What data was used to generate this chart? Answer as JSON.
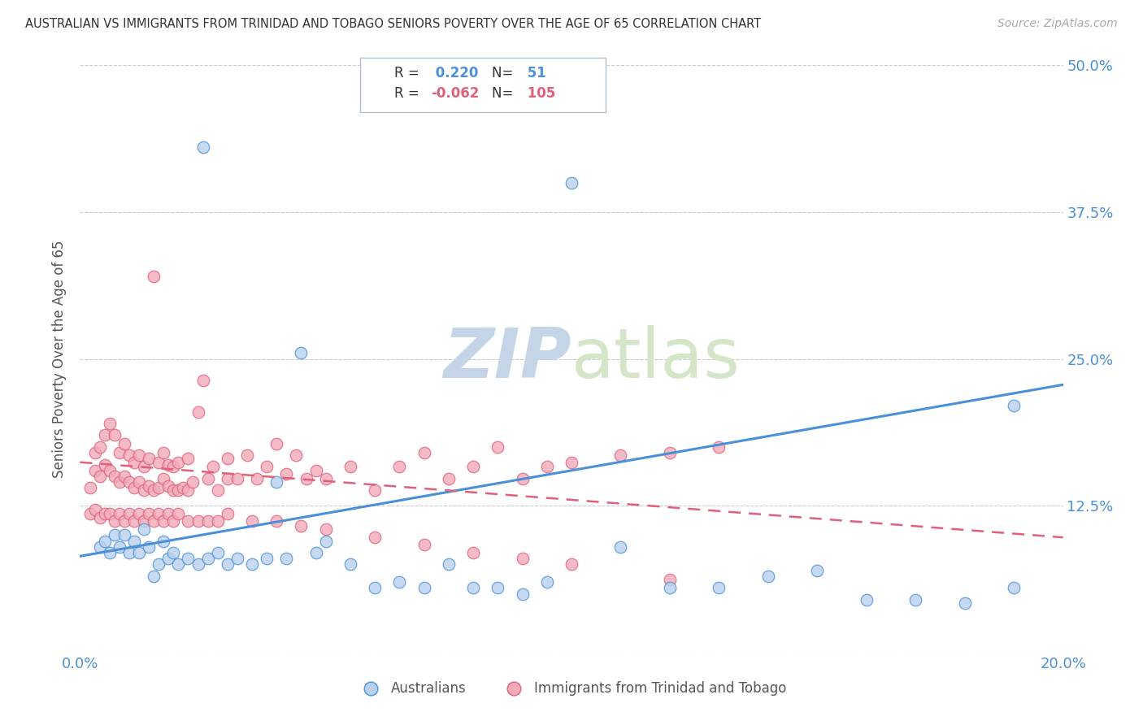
{
  "title": "AUSTRALIAN VS IMMIGRANTS FROM TRINIDAD AND TOBAGO SENIORS POVERTY OVER THE AGE OF 65 CORRELATION CHART",
  "source": "Source: ZipAtlas.com",
  "ylabel": "Seniors Poverty Over the Age of 65",
  "R_blue": 0.22,
  "N_blue": 51,
  "R_pink": -0.062,
  "N_pink": 105,
  "blue_color": "#4a90d9",
  "pink_color": "#e0607a",
  "scatter_blue_face": "#b8d0ee",
  "scatter_pink_face": "#f2aab8",
  "watermark_zip": "ZIP",
  "watermark_atlas": "atlas",
  "watermark_color": "#d0dff0",
  "background_color": "#ffffff",
  "grid_color": "#cccccc",
  "title_color": "#333333",
  "xlim": [
    0.0,
    0.2
  ],
  "ylim": [
    0.0,
    0.5
  ],
  "blue_line_x0": 0.0,
  "blue_line_y0": 0.082,
  "blue_line_x1": 0.2,
  "blue_line_y1": 0.228,
  "pink_line_x0": 0.0,
  "pink_line_y0": 0.162,
  "pink_line_x1": 0.2,
  "pink_line_y1": 0.098,
  "blue_points_x": [
    0.004,
    0.005,
    0.006,
    0.007,
    0.008,
    0.009,
    0.01,
    0.011,
    0.012,
    0.013,
    0.014,
    0.015,
    0.016,
    0.017,
    0.018,
    0.019,
    0.02,
    0.022,
    0.024,
    0.026,
    0.028,
    0.03,
    0.032,
    0.035,
    0.038,
    0.04,
    0.042,
    0.045,
    0.048,
    0.05,
    0.055,
    0.06,
    0.065,
    0.07,
    0.075,
    0.08,
    0.085,
    0.09,
    0.095,
    0.1,
    0.11,
    0.12,
    0.13,
    0.14,
    0.15,
    0.16,
    0.17,
    0.18,
    0.19,
    0.19,
    0.025
  ],
  "blue_points_y": [
    0.09,
    0.095,
    0.085,
    0.1,
    0.09,
    0.1,
    0.085,
    0.095,
    0.085,
    0.105,
    0.09,
    0.065,
    0.075,
    0.095,
    0.08,
    0.085,
    0.075,
    0.08,
    0.075,
    0.08,
    0.085,
    0.075,
    0.08,
    0.075,
    0.08,
    0.145,
    0.08,
    0.255,
    0.085,
    0.095,
    0.075,
    0.055,
    0.06,
    0.055,
    0.075,
    0.055,
    0.055,
    0.05,
    0.06,
    0.4,
    0.09,
    0.055,
    0.055,
    0.065,
    0.07,
    0.045,
    0.045,
    0.042,
    0.21,
    0.055,
    0.43
  ],
  "pink_points_x": [
    0.002,
    0.003,
    0.003,
    0.004,
    0.004,
    0.005,
    0.005,
    0.006,
    0.006,
    0.007,
    0.007,
    0.008,
    0.008,
    0.009,
    0.009,
    0.01,
    0.01,
    0.011,
    0.011,
    0.012,
    0.012,
    0.013,
    0.013,
    0.014,
    0.014,
    0.015,
    0.015,
    0.016,
    0.016,
    0.017,
    0.017,
    0.018,
    0.018,
    0.019,
    0.019,
    0.02,
    0.02,
    0.021,
    0.022,
    0.022,
    0.023,
    0.024,
    0.025,
    0.026,
    0.027,
    0.028,
    0.03,
    0.03,
    0.032,
    0.034,
    0.036,
    0.038,
    0.04,
    0.042,
    0.044,
    0.046,
    0.048,
    0.05,
    0.055,
    0.06,
    0.065,
    0.07,
    0.075,
    0.08,
    0.085,
    0.09,
    0.095,
    0.1,
    0.11,
    0.12,
    0.13,
    0.002,
    0.003,
    0.004,
    0.005,
    0.006,
    0.007,
    0.008,
    0.009,
    0.01,
    0.011,
    0.012,
    0.013,
    0.014,
    0.015,
    0.016,
    0.017,
    0.018,
    0.019,
    0.02,
    0.022,
    0.024,
    0.026,
    0.028,
    0.03,
    0.035,
    0.04,
    0.045,
    0.05,
    0.06,
    0.07,
    0.08,
    0.09,
    0.1,
    0.12
  ],
  "pink_points_y": [
    0.14,
    0.155,
    0.17,
    0.15,
    0.175,
    0.16,
    0.185,
    0.155,
    0.195,
    0.15,
    0.185,
    0.145,
    0.17,
    0.15,
    0.178,
    0.145,
    0.168,
    0.14,
    0.162,
    0.145,
    0.168,
    0.138,
    0.158,
    0.142,
    0.165,
    0.138,
    0.32,
    0.14,
    0.162,
    0.148,
    0.17,
    0.142,
    0.16,
    0.138,
    0.158,
    0.138,
    0.162,
    0.14,
    0.138,
    0.165,
    0.145,
    0.205,
    0.232,
    0.148,
    0.158,
    0.138,
    0.148,
    0.165,
    0.148,
    0.168,
    0.148,
    0.158,
    0.178,
    0.152,
    0.168,
    0.148,
    0.155,
    0.148,
    0.158,
    0.138,
    0.158,
    0.17,
    0.148,
    0.158,
    0.175,
    0.148,
    0.158,
    0.162,
    0.168,
    0.17,
    0.175,
    0.118,
    0.122,
    0.115,
    0.118,
    0.118,
    0.112,
    0.118,
    0.112,
    0.118,
    0.112,
    0.118,
    0.112,
    0.118,
    0.112,
    0.118,
    0.112,
    0.118,
    0.112,
    0.118,
    0.112,
    0.112,
    0.112,
    0.112,
    0.118,
    0.112,
    0.112,
    0.108,
    0.105,
    0.098,
    0.092,
    0.085,
    0.08,
    0.075,
    0.062
  ]
}
